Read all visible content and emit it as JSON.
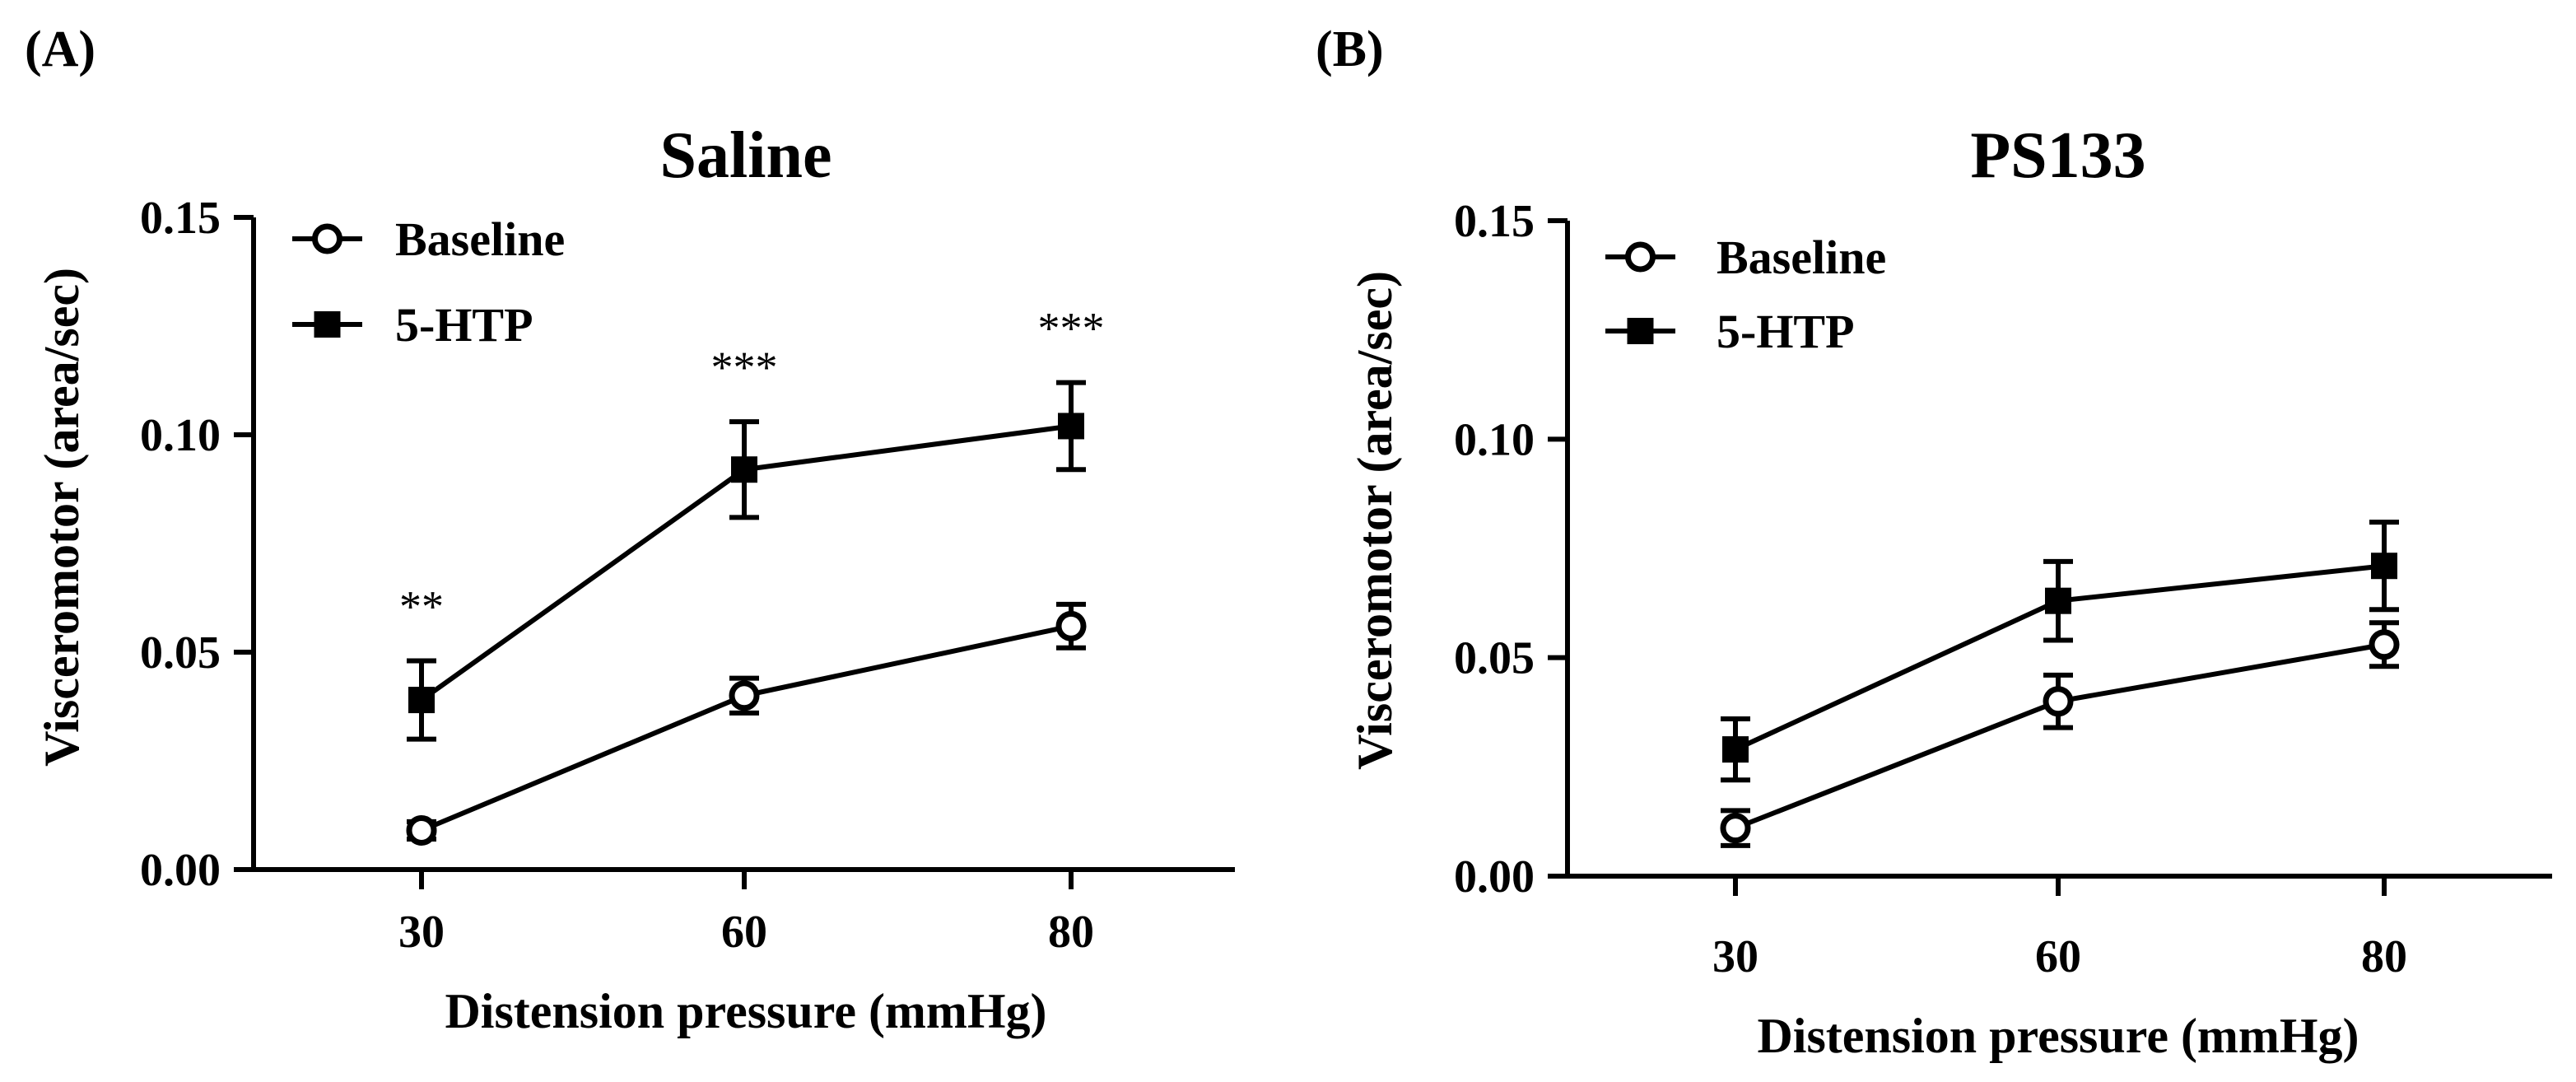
{
  "figure": {
    "panels": [
      "(A)",
      "(B)"
    ]
  },
  "chart_data": [
    {
      "type": "line",
      "panel": "(A)",
      "title": "Saline",
      "xlabel": "Distension pressure (mmHg)",
      "ylabel": "Visceromotor (area/sec)",
      "categories": [
        "30",
        "60",
        "80"
      ],
      "ylim": [
        0,
        0.15
      ],
      "yticks": [
        "0.00",
        "0.05",
        "0.10",
        "0.15"
      ],
      "legend": "top-left",
      "grid": false,
      "series": [
        {
          "name": "Baseline",
          "marker": "open-circle",
          "values": [
            0.009,
            0.04,
            0.056
          ],
          "errors": [
            0.002,
            0.004,
            0.005
          ]
        },
        {
          "name": "5-HTP",
          "marker": "filled-square",
          "values": [
            0.039,
            0.092,
            0.102
          ],
          "errors": [
            0.009,
            0.011,
            0.01
          ]
        }
      ],
      "annotations": [
        {
          "category": "30",
          "text": "**"
        },
        {
          "category": "60",
          "text": "***"
        },
        {
          "category": "80",
          "text": "***"
        }
      ]
    },
    {
      "type": "line",
      "panel": "(B)",
      "title": "PS133",
      "xlabel": "Distension pressure (mmHg)",
      "ylabel": "Visceromotor (area/sec)",
      "categories": [
        "30",
        "60",
        "80"
      ],
      "ylim": [
        0,
        0.15
      ],
      "yticks": [
        "0.00",
        "0.05",
        "0.10",
        "0.15"
      ],
      "legend": "top-left",
      "grid": false,
      "series": [
        {
          "name": "Baseline",
          "marker": "open-circle",
          "values": [
            0.011,
            0.04,
            0.053
          ],
          "errors": [
            0.004,
            0.006,
            0.005
          ]
        },
        {
          "name": "5-HTP",
          "marker": "filled-square",
          "values": [
            0.029,
            0.063,
            0.071
          ],
          "errors": [
            0.007,
            0.009,
            0.01
          ]
        }
      ],
      "annotations": []
    }
  ]
}
